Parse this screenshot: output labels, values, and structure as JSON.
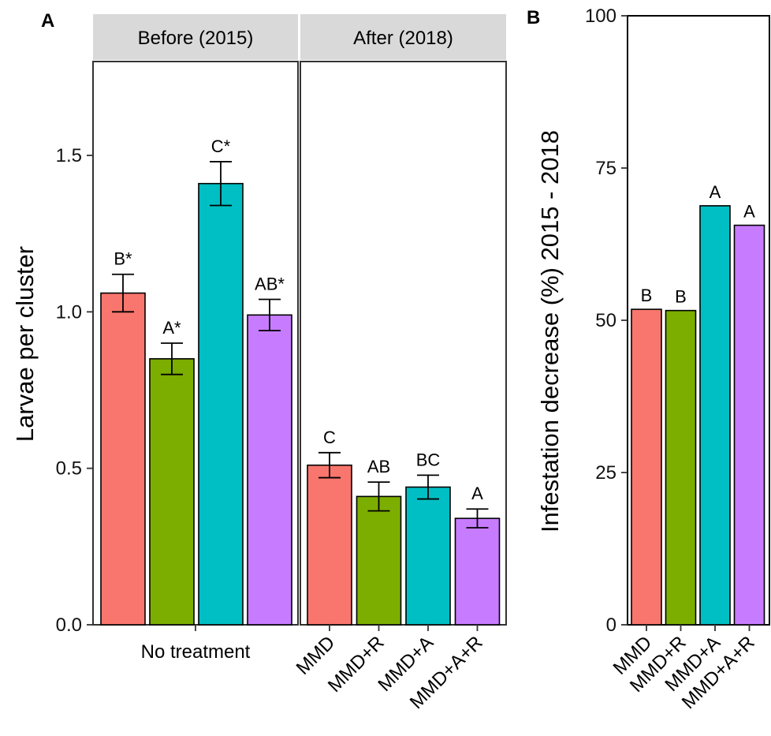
{
  "chart_data": [
    {
      "panel": "A",
      "type": "bar",
      "ylabel": "Larvae per cluster",
      "ylim": [
        0,
        1.8
      ],
      "yticks": [
        "0.0",
        "0.5",
        "1.0",
        "1.5"
      ],
      "facets": [
        {
          "strip": "Before (2015)",
          "group_label": "No treatment",
          "categories": [
            "MMD",
            "MMD+R",
            "MMD+A",
            "MMD+A+R"
          ],
          "values": [
            1.06,
            0.85,
            1.41,
            0.99
          ],
          "errors": [
            0.06,
            0.05,
            0.07,
            0.05
          ],
          "letters": [
            "B*",
            "A*",
            "C*",
            "AB*"
          ]
        },
        {
          "strip": "After (2018)",
          "categories": [
            "MMD",
            "MMD+R",
            "MMD+A",
            "MMD+A+R"
          ],
          "values": [
            0.51,
            0.41,
            0.44,
            0.34
          ],
          "errors": [
            0.04,
            0.046,
            0.038,
            0.03
          ],
          "letters": [
            "C",
            "AB",
            "BC",
            "A"
          ]
        }
      ],
      "colors": [
        "#F8766D",
        "#7CAE00",
        "#00BFC4",
        "#C77CFF"
      ],
      "grid": false
    },
    {
      "panel": "B",
      "type": "bar",
      "ylabel": "Infestation decrease (%) 2015 - 2018",
      "ylim": [
        0,
        100
      ],
      "yticks": [
        "0",
        "25",
        "50",
        "75",
        "100"
      ],
      "categories": [
        "MMD",
        "MMD+R",
        "MMD+A",
        "MMD+A+R"
      ],
      "values": [
        51.8,
        51.6,
        68.8,
        65.6
      ],
      "letters": [
        "B",
        "B",
        "A",
        "A"
      ],
      "colors": [
        "#F8766D",
        "#7CAE00",
        "#00BFC4",
        "#C77CFF"
      ],
      "grid": false
    }
  ]
}
